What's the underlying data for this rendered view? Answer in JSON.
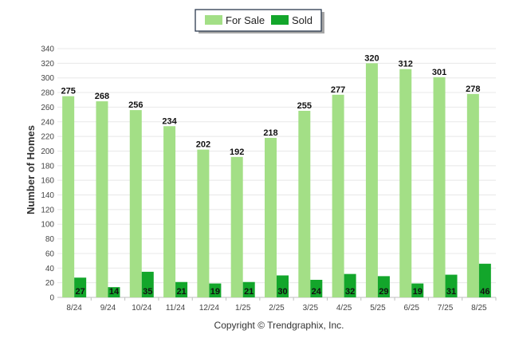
{
  "chart_data": {
    "type": "bar",
    "categories": [
      "8/24",
      "9/24",
      "10/24",
      "11/24",
      "12/24",
      "1/25",
      "2/25",
      "3/25",
      "4/25",
      "5/25",
      "6/25",
      "7/25",
      "8/25"
    ],
    "series": [
      {
        "name": "For Sale",
        "color": "#a3df86",
        "values": [
          275,
          268,
          256,
          234,
          202,
          192,
          218,
          255,
          277,
          320,
          312,
          301,
          278
        ]
      },
      {
        "name": "Sold",
        "color": "#13a62b",
        "values": [
          27,
          14,
          35,
          21,
          19,
          21,
          30,
          24,
          32,
          29,
          19,
          31,
          46
        ]
      }
    ],
    "ylabel": "Number of Homes",
    "xlabel": "",
    "ylim": [
      0,
      340
    ],
    "ytick_step": 20,
    "grid": true,
    "legend": "top-center"
  },
  "footer": {
    "copyright": "Copyright © Trendgraphix, Inc."
  }
}
